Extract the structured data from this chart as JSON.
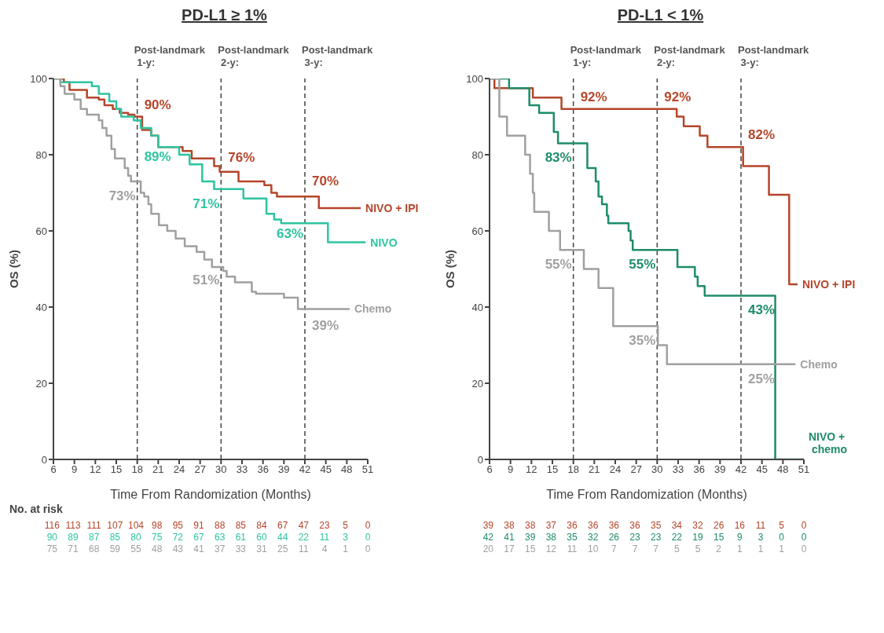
{
  "chart_data": [
    {
      "type": "step",
      "title": "PD-L1 ≥ 1%",
      "xlabel": "Time From Randomization (Months)",
      "ylabel": "OS (%)",
      "xlim": [
        6,
        51
      ],
      "xticks": [
        6,
        9,
        12,
        15,
        18,
        21,
        24,
        27,
        30,
        33,
        36,
        39,
        42,
        45,
        48,
        51
      ],
      "ylim": [
        0,
        100
      ],
      "yticks": [
        0,
        20,
        40,
        60,
        80,
        100
      ],
      "grid": false,
      "legend": false,
      "series": [
        {
          "name": "NIVO + IPI",
          "color": "#b5452a",
          "x": [
            6,
            7.5,
            8.3,
            10.8,
            12.5,
            13.3,
            14.5,
            15.5,
            16.7,
            17.6,
            18.7,
            20,
            21,
            24.5,
            25.8,
            29,
            29.8,
            32.5,
            36.2,
            37.2,
            38,
            44,
            50
          ],
          "values": [
            100,
            99,
            97,
            95,
            94.5,
            93,
            92,
            91,
            90.5,
            90,
            86.5,
            85,
            82,
            81,
            79,
            77,
            75.5,
            73,
            72,
            70,
            69,
            66,
            66
          ]
        },
        {
          "name": "NIVO",
          "color": "#2ec4a0",
          "x": [
            6,
            7,
            11.5,
            12.5,
            14,
            15,
            15.7,
            17.5,
            18.5,
            20,
            21,
            24,
            25.5,
            27.3,
            29,
            33.2,
            36.5,
            37.6,
            38.6,
            45.3,
            50.7
          ],
          "values": [
            100,
            99,
            98,
            96,
            94,
            92,
            90,
            89,
            87,
            85,
            82,
            80,
            77.5,
            73,
            71,
            68.5,
            64.5,
            63,
            62,
            57,
            57
          ]
        },
        {
          "name": "Chemo",
          "color": "#a0a0a0",
          "x": [
            6,
            7,
            7.6,
            9,
            9.9,
            10.8,
            12.5,
            13,
            13.6,
            14.3,
            14.8,
            16.2,
            16.7,
            17.1,
            18.5,
            19,
            19.6,
            20,
            21.1,
            22.3,
            23.5,
            24.8,
            26.5,
            27.6,
            28.7,
            30.3,
            30.8,
            32,
            34.4,
            35,
            39,
            41,
            48.4
          ],
          "values": [
            100,
            98,
            96,
            94.5,
            92,
            90.5,
            89,
            87,
            85,
            81.5,
            79,
            76.5,
            74.5,
            73,
            70,
            69,
            67,
            64.5,
            61.5,
            60,
            58,
            56,
            54.5,
            52.5,
            50.5,
            49.5,
            48,
            46.5,
            44,
            43.5,
            42.5,
            39.5,
            39.5
          ]
        }
      ],
      "ref_lines": [
        {
          "axis": "x",
          "value": 18,
          "label": "Post-landmark 1-y:",
          "color": "#444444",
          "line_style": "dashed"
        },
        {
          "axis": "x",
          "value": 30,
          "label": "Post-landmark 2-y:",
          "color": "#444444",
          "line_style": "dashed"
        },
        {
          "axis": "x",
          "value": 42,
          "label": "Post-landmark 3-y:",
          "color": "#444444",
          "line_style": "dashed"
        }
      ],
      "annotations": [
        {
          "text": "90%",
          "x": 18,
          "y": 90
        },
        {
          "text": "89%",
          "x": 18,
          "y": 89
        },
        {
          "text": "73%",
          "x": 18,
          "y": 73
        },
        {
          "text": "76%",
          "x": 30,
          "y": 76
        },
        {
          "text": "71%",
          "x": 30,
          "y": 71
        },
        {
          "text": "51%",
          "x": 30,
          "y": 51
        },
        {
          "text": "70%",
          "x": 42,
          "y": 70
        },
        {
          "text": "63%",
          "x": 42,
          "y": 63
        },
        {
          "text": "39%",
          "x": 42,
          "y": 39
        },
        "No. at risk",
        "116 113 111 107 104 98 95 91 88 85 84 67 47 23 5 0",
        "90 89 87 85 80 75 72 67 63 61 60 44 22 11 3 0",
        "75 71 68 59 55 48 43 41 37 33 31 25 11 4 1 0"
      ]
    },
    {
      "type": "step",
      "title": "PD-L1 < 1%",
      "xlabel": "Time From Randomization (Months)",
      "ylabel": "OS (%)",
      "xlim": [
        6,
        51
      ],
      "xticks": [
        6,
        9,
        12,
        15,
        18,
        21,
        24,
        27,
        30,
        33,
        36,
        39,
        42,
        45,
        48,
        51
      ],
      "ylim": [
        0,
        100
      ],
      "yticks": [
        0,
        20,
        40,
        60,
        80,
        100
      ],
      "grid": false,
      "legend": false,
      "series": [
        {
          "name": "NIVO + IPI",
          "color": "#b5452a",
          "x": [
            6,
            6.7,
            12.2,
            16.3,
            32.8,
            33.8,
            36.1,
            37.2,
            42.3,
            46,
            48.9,
            50.1
          ],
          "values": [
            100,
            97.5,
            95,
            92,
            90,
            87.5,
            85,
            82,
            77,
            69.5,
            46,
            46
          ]
        },
        {
          "name": "NIVO + chemo",
          "color": "#1e8c6a",
          "x": [
            6,
            8.8,
            11.7,
            13.1,
            15.2,
            15.8,
            20,
            21.2,
            21.6,
            22.1,
            22.8,
            23,
            25.9,
            26.2,
            26.5,
            32.9,
            35.4,
            35.8,
            36.8,
            46.9,
            51
          ],
          "values": [
            100,
            97.5,
            93,
            91,
            86,
            83,
            76.5,
            73,
            69,
            67,
            64,
            62,
            60,
            57.5,
            55,
            50.5,
            48,
            45.5,
            43,
            0,
            0
          ]
        },
        {
          "name": "Chemo",
          "color": "#a0a0a0",
          "x": [
            6,
            7.4,
            8.5,
            11.1,
            11.8,
            12.2,
            12.4,
            14.5,
            16.1,
            19.5,
            21.6,
            23.7,
            30.1,
            31.4,
            49.8
          ],
          "values": [
            100,
            90,
            85,
            80,
            75,
            70,
            65,
            60,
            55,
            50,
            45,
            35,
            30,
            25,
            25
          ]
        }
      ],
      "ref_lines": [
        {
          "axis": "x",
          "value": 18,
          "label": "Post-landmark 1-y:",
          "color": "#444444",
          "line_style": "dashed"
        },
        {
          "axis": "x",
          "value": 30,
          "label": "Post-landmark 2-y:",
          "color": "#444444",
          "line_style": "dashed"
        },
        {
          "axis": "x",
          "value": 42,
          "label": "Post-landmark 3-y:",
          "color": "#444444",
          "line_style": "dashed"
        }
      ],
      "annotations": [
        {
          "text": "92%",
          "x": 18,
          "y": 92
        },
        {
          "text": "83%",
          "x": 18,
          "y": 83
        },
        {
          "text": "55%",
          "x": 18,
          "y": 55
        },
        {
          "text": "92%",
          "x": 30,
          "y": 92
        },
        {
          "text": "55%",
          "x": 30,
          "y": 55
        },
        {
          "text": "35%",
          "x": 30,
          "y": 35
        },
        {
          "text": "82%",
          "x": 42,
          "y": 82
        },
        {
          "text": "43%",
          "x": 42,
          "y": 43
        },
        {
          "text": "25%",
          "x": 42,
          "y": 25
        },
        "39 38 38 37 36 36 36 36 35 34 32 26 16 11 5 0",
        "42 41 39 38 35 32 26 23 23 22 19 15 9 3 0 0",
        "20 17 15 12 11 10 7 7 7 5 5 2 1 1 1 0"
      ]
    }
  ]
}
